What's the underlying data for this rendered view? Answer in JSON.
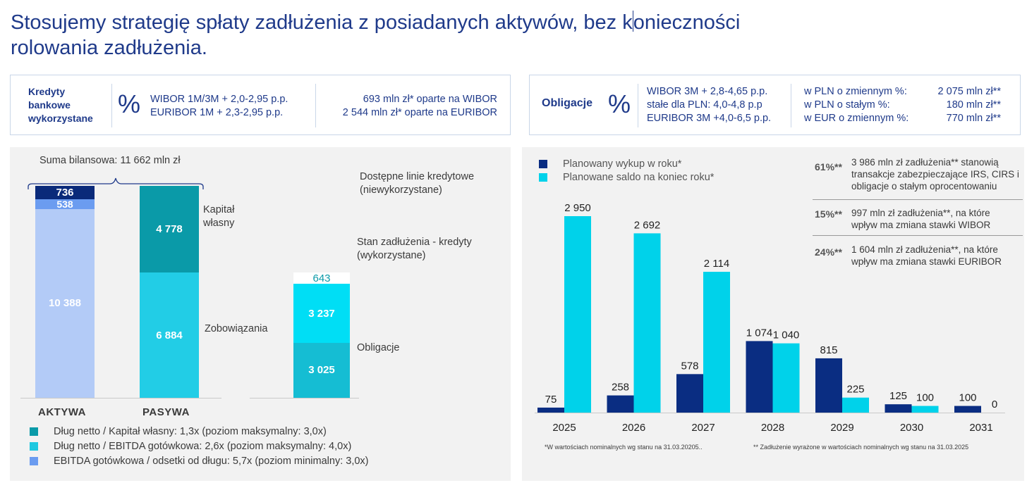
{
  "title_part1": "Stosujemy strategię spłaty zadłużenia z posiadanych aktywów, bez k",
  "title_part2": "onieczności",
  "title_line2": "rolowania zadłużenia.",
  "loans_box": {
    "label_line1": "Kredyty",
    "label_line2": "bankowe",
    "label_line3": "wykorzystane",
    "icon": "percent-icon",
    "icon_glyph": "%",
    "rate_1": "WIBOR 1M/3M + 2,0-2,95 p.p.",
    "rate_2": "EURIBOR 1M + 2,3-2,95 p.p.",
    "amount_1": "693 mln zł* oparte na WIBOR",
    "amount_2": "2 544  mln zł* oparte na EURIBOR"
  },
  "bonds_box": {
    "label": "Obligacje",
    "icon": "percent-icon",
    "icon_glyph": "%",
    "rate_1": "WIBOR 3M + 2,8-4,65 p.p.",
    "rate_2": "stałe dla PLN: 4,0-4,8 p.p",
    "rate_3": "EURIBOR 3M +4,0-6,5 p.p.",
    "rows": [
      {
        "label": "w PLN o zmiennym %:",
        "value": "2 075 mln zł**"
      },
      {
        "label": "w PLN o stałym %:",
        "value": "180 mln zł**"
      },
      {
        "label": "w EUR o zmiennym %:",
        "value": "770 mln zł**"
      }
    ]
  },
  "balance_panel": {
    "sum_label": "Suma bilansowa: 11 662 mln zł",
    "kpis": [
      {
        "text": "Dług netto / Kapitał własny: 1,3x (poziom maksymalny: 3,0x)",
        "color": "#0a9aa8"
      },
      {
        "text": "Dług netto / EBITDA gotówkowa: 2,6x (poziom maksymalny: 4,0x)",
        "color": "#1ec8e0"
      },
      {
        "text": "EBITDA gotówkowa / odsetki od długu: 5,7x (poziom minimalny: 3,0x)",
        "color": "#6b9cf0"
      }
    ]
  },
  "chart_data": [
    {
      "type": "bar",
      "stacked": true,
      "categories": [
        "AKTYWA",
        "PASYWA",
        ""
      ],
      "series": [
        {
          "values": [
            10388,
            null,
            null
          ],
          "labels": [
            "10 388",
            null,
            null
          ],
          "color": "#b3cbf7"
        },
        {
          "values": [
            538,
            null,
            null
          ],
          "labels": [
            "538",
            null,
            null
          ],
          "color": "#6b9cf0"
        },
        {
          "values": [
            736,
            null,
            null
          ],
          "labels": [
            "736",
            null,
            null
          ],
          "color": "#0a2a7a"
        },
        {
          "name": "Zobowiązania",
          "values": [
            null,
            6884,
            null
          ],
          "labels": [
            null,
            "6 884",
            null
          ],
          "color": "#22cde6"
        },
        {
          "name": "Kapitał własny",
          "values": [
            null,
            4778,
            null
          ],
          "labels": [
            null,
            "4 778",
            null
          ],
          "color": "#0a9aa8"
        },
        {
          "name": "Obligacje",
          "values": [
            null,
            null,
            3025
          ],
          "labels": [
            null,
            null,
            "3 025"
          ],
          "color": "#15bdd3"
        },
        {
          "name": "Stan zadłużenia - kredyty (wykorzystane)",
          "values": [
            null,
            null,
            3237
          ],
          "labels": [
            null,
            null,
            "3 237"
          ],
          "color": "#00def5"
        },
        {
          "name": "Dostępne linie kredytowe (niewykorzystane)",
          "values": [
            null,
            null,
            643
          ],
          "labels": [
            null,
            null,
            "643"
          ],
          "color": "#ffffff"
        }
      ],
      "side_labels": {
        "kapital_line1": "Kapitał",
        "kapital_line2": "własny",
        "zobowiazania": "Zobowiązania",
        "linie_line1": "Dostępne linie kredytowe",
        "linie_line2": "(niewykorzystane)",
        "stan_line1": "Stan zadłużenia - kredyty",
        "stan_line2": "(wykorzystane)",
        "obligacje": "Obligacje"
      }
    },
    {
      "type": "bar",
      "categories": [
        "2025",
        "2026",
        "2027",
        "2028",
        "2029",
        "2030",
        "2031"
      ],
      "series": [
        {
          "name": "Planowany wykup w roku*",
          "values": [
            75,
            258,
            578,
            1074,
            815,
            125,
            100
          ],
          "labels": [
            "75",
            "258",
            "578",
            "1 074",
            "815",
            "125",
            "100"
          ],
          "color": "#0a2d82"
        },
        {
          "name": "Planowane saldo na koniec roku*",
          "values": [
            2950,
            2692,
            2114,
            1040,
            225,
            100,
            0
          ],
          "labels": [
            "2 950",
            "2 692",
            "2 114",
            "1 040",
            "225",
            "100",
            "0"
          ],
          "color": "#00d2ea"
        }
      ],
      "ylim": [
        0,
        3000
      ]
    }
  ],
  "info_box": [
    {
      "pct": "61%**",
      "text": "3 986 mln zł zadłużenia** stanowią transakcje zabezpieczające IRS, CIRS i obligacje o stałym oprocentowaniu"
    },
    {
      "pct": "15%**",
      "text": "997 mln zł zadłużenia**, na które wpływ ma zmiana stawki WIBOR"
    },
    {
      "pct": "24%**",
      "text": "1 604 mln zł zadłużenia**, na które wpływ ma zmiana stawki EURIBOR"
    }
  ],
  "footnote_1": "*W wartościach nominalnych wg stanu na 31.03.20205..",
  "footnote_2": "** Zadłużenie wyrażone w wartościach nominalnych wg stanu na 31.03.2025"
}
